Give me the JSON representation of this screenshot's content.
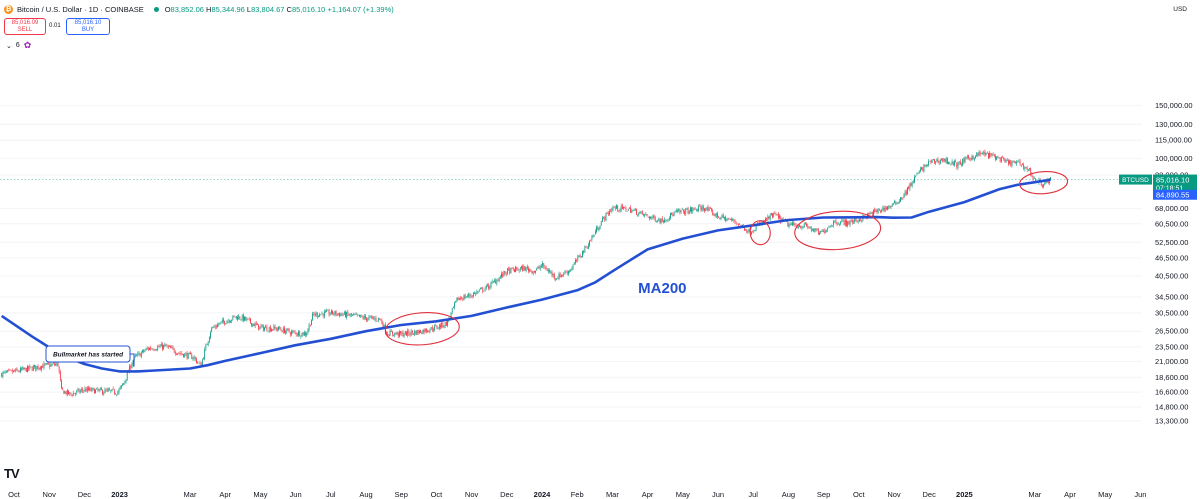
{
  "header": {
    "symbol": "Bitcoin / U.S. Dollar · 1D · COINBASE",
    "coin_glyph": "₿",
    "o_label": "O",
    "o_value": "83,852.06",
    "h_label": "H",
    "h_value": "85,344.96",
    "l_label": "L",
    "l_value": "83,804.67",
    "c_label": "C",
    "c_value": "85,016.10",
    "change": "+1,164.07 (+1.39%)"
  },
  "trade": {
    "sell_price": "85,016.09",
    "sell_label": "SELL",
    "spread": "0.01",
    "buy_price": "85,016.10",
    "buy_label": "BUY"
  },
  "indicators": {
    "toggle": "⌄",
    "count": "6"
  },
  "currency": "USD",
  "logo_text": "TV",
  "colors": {
    "up": "#089981",
    "down": "#f23645",
    "ma": "#2350d3",
    "circle": "#e0303c",
    "badge_green": "#089981",
    "badge_blue": "#2962ff"
  },
  "chart_data": {
    "type": "candlestick",
    "scale": "log",
    "ylim": [
      13000,
      155000
    ],
    "y_ticks": [
      {
        "value": 150000,
        "label": "150,000.00"
      },
      {
        "value": 130000,
        "label": "130,000.00"
      },
      {
        "value": 115000,
        "label": "115,000.00"
      },
      {
        "value": 100000,
        "label": "100,000.00"
      },
      {
        "value": 88000,
        "label": "88,000.00"
      },
      {
        "value": 68000,
        "label": "68,000.00"
      },
      {
        "value": 60500,
        "label": "60,500.00"
      },
      {
        "value": 52500,
        "label": "52,500.00"
      },
      {
        "value": 46500,
        "label": "46,500.00"
      },
      {
        "value": 40500,
        "label": "40,500.00"
      },
      {
        "value": 34500,
        "label": "34,500.00"
      },
      {
        "value": 30500,
        "label": "30,500.00"
      },
      {
        "value": 26500,
        "label": "26,500.00"
      },
      {
        "value": 23500,
        "label": "23,500.00"
      },
      {
        "value": 21000,
        "label": "21,000.00"
      },
      {
        "value": 18600,
        "label": "18,600.00"
      },
      {
        "value": 16600,
        "label": "16,600.00"
      },
      {
        "value": 14800,
        "label": "14,800.00"
      },
      {
        "value": 13300,
        "label": "13,300.00"
      }
    ],
    "x_ticks": [
      {
        "label": "Oct",
        "t": 0.0,
        "bold": false
      },
      {
        "label": "Nov",
        "t": 1.0,
        "bold": false
      },
      {
        "label": "Dec",
        "t": 2.0,
        "bold": false
      },
      {
        "label": "2023",
        "t": 3.0,
        "bold": true
      },
      {
        "label": "Mar",
        "t": 5.0,
        "bold": false
      },
      {
        "label": "Apr",
        "t": 6.0,
        "bold": false
      },
      {
        "label": "May",
        "t": 7.0,
        "bold": false
      },
      {
        "label": "Jun",
        "t": 8.0,
        "bold": false
      },
      {
        "label": "Jul",
        "t": 9.0,
        "bold": false
      },
      {
        "label": "Aug",
        "t": 10.0,
        "bold": false
      },
      {
        "label": "Sep",
        "t": 11.0,
        "bold": false
      },
      {
        "label": "Oct",
        "t": 12.0,
        "bold": false
      },
      {
        "label": "Nov",
        "t": 13.0,
        "bold": false
      },
      {
        "label": "Dec",
        "t": 14.0,
        "bold": false
      },
      {
        "label": "2024",
        "t": 15.0,
        "bold": true
      },
      {
        "label": "Feb",
        "t": 16.0,
        "bold": false
      },
      {
        "label": "Mar",
        "t": 17.0,
        "bold": false
      },
      {
        "label": "Apr",
        "t": 18.0,
        "bold": false
      },
      {
        "label": "May",
        "t": 19.0,
        "bold": false
      },
      {
        "label": "Jun",
        "t": 20.0,
        "bold": false
      },
      {
        "label": "Jul",
        "t": 21.0,
        "bold": false
      },
      {
        "label": "Aug",
        "t": 22.0,
        "bold": false
      },
      {
        "label": "Sep",
        "t": 23.0,
        "bold": false
      },
      {
        "label": "Oct",
        "t": 24.0,
        "bold": false
      },
      {
        "label": "Nov",
        "t": 25.0,
        "bold": false
      },
      {
        "label": "Dec",
        "t": 26.0,
        "bold": false
      },
      {
        "label": "2025",
        "t": 27.0,
        "bold": true
      },
      {
        "label": "Mar",
        "t": 29.0,
        "bold": false
      },
      {
        "label": "Apr",
        "t": 30.0,
        "bold": false
      },
      {
        "label": "May",
        "t": 31.0,
        "bold": false
      },
      {
        "label": "Jun",
        "t": 32.0,
        "bold": false
      }
    ],
    "price_series": [
      [
        -0.35,
        19100
      ],
      [
        0.2,
        19600
      ],
      [
        0.8,
        20300
      ],
      [
        1.25,
        20500
      ],
      [
        1.35,
        16800
      ],
      [
        1.6,
        16300
      ],
      [
        2.0,
        16900
      ],
      [
        2.5,
        16700
      ],
      [
        2.95,
        16600
      ],
      [
        3.1,
        17600
      ],
      [
        3.4,
        21500
      ],
      [
        3.8,
        23200
      ],
      [
        4.3,
        23600
      ],
      [
        4.7,
        22400
      ],
      [
        5.1,
        21700
      ],
      [
        5.3,
        20300
      ],
      [
        5.6,
        27000
      ],
      [
        5.9,
        28300
      ],
      [
        6.3,
        29600
      ],
      [
        6.5,
        29300
      ],
      [
        7.0,
        27200
      ],
      [
        7.5,
        27000
      ],
      [
        7.9,
        26200
      ],
      [
        8.3,
        26000
      ],
      [
        8.5,
        30100
      ],
      [
        9.0,
        30500
      ],
      [
        9.5,
        30000
      ],
      [
        10.0,
        29300
      ],
      [
        10.4,
        29100
      ],
      [
        10.6,
        26100
      ],
      [
        11.0,
        25900
      ],
      [
        11.5,
        26400
      ],
      [
        12.0,
        27300
      ],
      [
        12.3,
        28200
      ],
      [
        12.6,
        34000
      ],
      [
        13.0,
        35000
      ],
      [
        13.5,
        37500
      ],
      [
        14.0,
        42000
      ],
      [
        14.5,
        43000
      ],
      [
        14.8,
        42000
      ],
      [
        15.0,
        44000
      ],
      [
        15.4,
        40000
      ],
      [
        15.8,
        42500
      ],
      [
        16.3,
        51500
      ],
      [
        16.7,
        62000
      ],
      [
        17.0,
        68500
      ],
      [
        17.5,
        67500
      ],
      [
        18.0,
        64000
      ],
      [
        18.4,
        62000
      ],
      [
        18.8,
        66000
      ],
      [
        19.2,
        67000
      ],
      [
        19.6,
        68500
      ],
      [
        20.0,
        64000
      ],
      [
        20.5,
        61500
      ],
      [
        20.9,
        57000
      ],
      [
        21.2,
        60500
      ],
      [
        21.6,
        65000
      ],
      [
        22.0,
        60000
      ],
      [
        22.5,
        59500
      ],
      [
        22.9,
        56000
      ],
      [
        23.3,
        61500
      ],
      [
        23.7,
        61000
      ],
      [
        24.0,
        62500
      ],
      [
        24.5,
        66500
      ],
      [
        25.0,
        70000
      ],
      [
        25.3,
        76000
      ],
      [
        25.7,
        90000
      ],
      [
        26.0,
        97000
      ],
      [
        26.4,
        99000
      ],
      [
        26.8,
        95000
      ],
      [
        27.1,
        100000
      ],
      [
        27.5,
        104000
      ],
      [
        27.9,
        101000
      ],
      [
        28.2,
        97000
      ],
      [
        28.6,
        96000
      ],
      [
        28.85,
        91000
      ],
      [
        29.0,
        84500
      ],
      [
        29.25,
        82000
      ],
      [
        29.45,
        85016.1
      ]
    ],
    "ma200": {
      "name": "MA200",
      "points": [
        [
          -0.35,
          29800
        ],
        [
          0.5,
          25500
        ],
        [
          1.0,
          23400
        ],
        [
          1.5,
          21700
        ],
        [
          2.0,
          20600
        ],
        [
          2.5,
          19900
        ],
        [
          3.0,
          19450
        ],
        [
          3.5,
          19450
        ],
        [
          4.0,
          19600
        ],
        [
          4.5,
          19750
        ],
        [
          5.0,
          19900
        ],
        [
          5.5,
          20400
        ],
        [
          6.0,
          21100
        ],
        [
          7.0,
          22400
        ],
        [
          8.0,
          23800
        ],
        [
          9.0,
          25000
        ],
        [
          10.0,
          26500
        ],
        [
          11.0,
          27800
        ],
        [
          12.0,
          28600
        ],
        [
          13.0,
          29800
        ],
        [
          14.0,
          31800
        ],
        [
          15.0,
          33800
        ],
        [
          16.0,
          36300
        ],
        [
          16.5,
          38500
        ],
        [
          17.0,
          42000
        ],
        [
          17.5,
          45700
        ],
        [
          18.0,
          49700
        ],
        [
          19.0,
          54000
        ],
        [
          20.0,
          57500
        ],
        [
          21.0,
          59800
        ],
        [
          22.0,
          62300
        ],
        [
          23.0,
          63500
        ],
        [
          24.0,
          63600
        ],
        [
          24.5,
          63700
        ],
        [
          25.0,
          63400
        ],
        [
          25.5,
          63500
        ],
        [
          26.0,
          66400
        ],
        [
          27.0,
          71500
        ],
        [
          28.0,
          79000
        ],
        [
          28.5,
          81600
        ],
        [
          29.0,
          83300
        ],
        [
          29.45,
          84890.55
        ]
      ]
    },
    "current_price": {
      "value": 85016.1,
      "symbol": "BTCUSD",
      "price_label": "85,016.10",
      "countdown": "07:18:51"
    },
    "ma_badge": {
      "value": 84890.55,
      "label": "84,890.55"
    },
    "annotations": [
      {
        "text": "Bullmarket has started",
        "t": 3.4,
        "value": 26000
      },
      {
        "text": "MA200",
        "t": 18.3,
        "value": 35500
      }
    ],
    "highlight_circles": [
      {
        "t": 11.6,
        "value": 27000
      },
      {
        "t": 21.2,
        "value": 56500
      },
      {
        "t": 23.4,
        "value": 57500
      },
      {
        "t": 29.25,
        "value": 83000
      }
    ]
  }
}
